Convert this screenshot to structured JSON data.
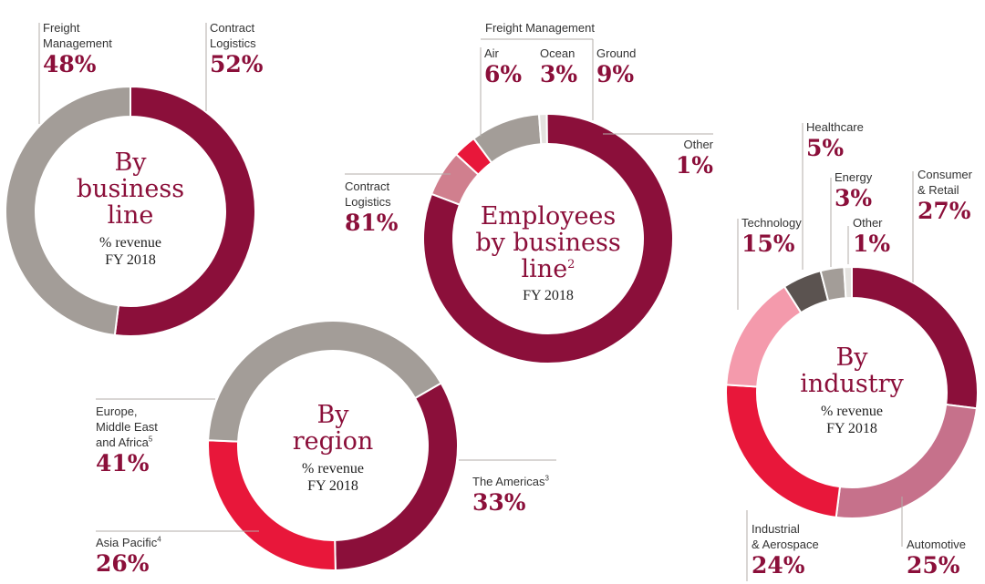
{
  "chart_data": [
    {
      "type": "pie",
      "title": "By business line",
      "subtitle": "% revenue",
      "period": "FY 2018",
      "slices": [
        {
          "label": "Contract Logistics",
          "label_lines": [
            "Contract",
            "Logistics"
          ],
          "value": 52,
          "value_text": "52%",
          "color": "#8b0f3a"
        },
        {
          "label": "Freight Management",
          "label_lines": [
            "Freight",
            "Management"
          ],
          "value": 48,
          "value_text": "48%",
          "color": "#a39d98"
        }
      ]
    },
    {
      "type": "pie",
      "title": "Employees by business line",
      "title_footnote": "2",
      "period": "FY 2018",
      "group_label": "Freight Management",
      "slices": [
        {
          "label": "Air",
          "value": 6,
          "value_text": "6%",
          "color": "#d07f8e"
        },
        {
          "label": "Ocean",
          "value": 3,
          "value_text": "3%",
          "color": "#e8173a"
        },
        {
          "label": "Ground",
          "value": 9,
          "value_text": "9%",
          "color": "#a39d98"
        },
        {
          "label": "Other",
          "value": 1,
          "value_text": "1%",
          "color": "#e4e2df"
        },
        {
          "label": "Contract Logistics",
          "label_lines": [
            "Contract",
            "Logistics"
          ],
          "value": 81,
          "value_text": "81%",
          "color": "#8b0f3a"
        }
      ]
    },
    {
      "type": "pie",
      "title": "By region",
      "subtitle": "% revenue",
      "period": "FY 2018",
      "slices": [
        {
          "label": "The Americas",
          "footnote": "3",
          "value": 33,
          "value_text": "33%",
          "color": "#8b0f3a"
        },
        {
          "label": "Asia Pacific",
          "footnote": "4",
          "value": 26,
          "value_text": "26%",
          "color": "#e8173a"
        },
        {
          "label": "Europe, Middle East and Africa",
          "footnote": "5",
          "label_lines": [
            "Europe,",
            "Middle East",
            "and Africa"
          ],
          "value": 41,
          "value_text": "41%",
          "color": "#a39d98"
        }
      ]
    },
    {
      "type": "pie",
      "title": "By industry",
      "subtitle": "% revenue",
      "period": "FY 2018",
      "slices": [
        {
          "label": "Consumer & Retail",
          "label_lines": [
            "Consumer",
            "& Retail"
          ],
          "value": 27,
          "value_text": "27%",
          "color": "#8b0f3a"
        },
        {
          "label": "Automotive",
          "value": 25,
          "value_text": "25%",
          "color": "#c6718b"
        },
        {
          "label": "Industrial & Aerospace",
          "label_lines": [
            "Industrial",
            "& Aerospace"
          ],
          "value": 24,
          "value_text": "24%",
          "color": "#e8173a"
        },
        {
          "label": "Technology",
          "value": 15,
          "value_text": "15%",
          "color": "#f49aac"
        },
        {
          "label": "Healthcare",
          "value": 5,
          "value_text": "5%",
          "color": "#5b5350"
        },
        {
          "label": "Energy",
          "value": 3,
          "value_text": "3%",
          "color": "#a39d98"
        },
        {
          "label": "Other",
          "value": 1,
          "value_text": "1%",
          "color": "#e4e2df"
        }
      ]
    }
  ]
}
